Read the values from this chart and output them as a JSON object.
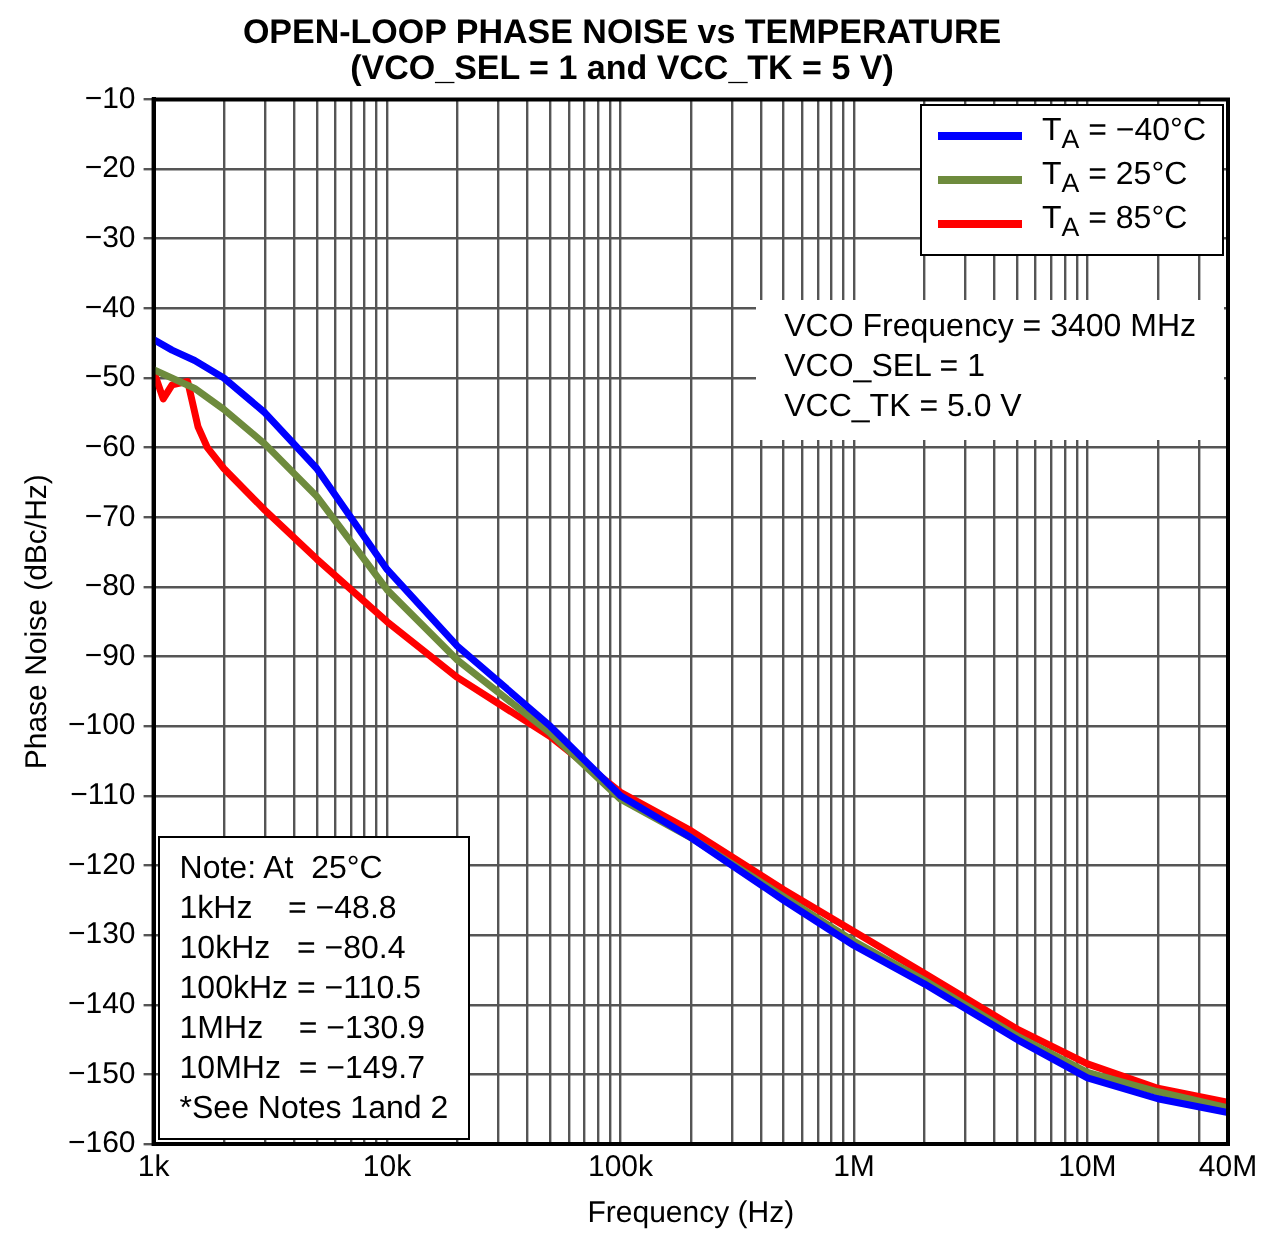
{
  "chart_data": {
    "type": "line",
    "title": "OPEN-LOOP PHASE NOISE vs TEMPERATURE",
    "subtitle": "(VCO_SEL = 1 and VCC_TK = 5 V)",
    "xlabel": "Frequency (Hz)",
    "ylabel": "Phase Noise (dBc/Hz)",
    "log": "x",
    "grid": true,
    "legend": "top right",
    "xlim": [
      1000,
      40000000
    ],
    "ylim": [
      -160,
      -10
    ],
    "xticks": [
      {
        "value": 1000,
        "label": "1k"
      },
      {
        "value": 2000,
        "label": null
      },
      {
        "value": 3000,
        "label": null
      },
      {
        "value": 4000,
        "label": null
      },
      {
        "value": 5000,
        "label": null
      },
      {
        "value": 6000,
        "label": null
      },
      {
        "value": 7000,
        "label": null
      },
      {
        "value": 8000,
        "label": null
      },
      {
        "value": 9000,
        "label": null
      },
      {
        "value": 10000,
        "label": "10k"
      },
      {
        "value": 20000,
        "label": null
      },
      {
        "value": 30000,
        "label": null
      },
      {
        "value": 40000,
        "label": null
      },
      {
        "value": 50000,
        "label": null
      },
      {
        "value": 60000,
        "label": null
      },
      {
        "value": 70000,
        "label": null
      },
      {
        "value": 80000,
        "label": null
      },
      {
        "value": 90000,
        "label": null
      },
      {
        "value": 100000,
        "label": "100k"
      },
      {
        "value": 200000,
        "label": null
      },
      {
        "value": 300000,
        "label": null
      },
      {
        "value": 400000,
        "label": null
      },
      {
        "value": 500000,
        "label": null
      },
      {
        "value": 600000,
        "label": null
      },
      {
        "value": 700000,
        "label": null
      },
      {
        "value": 800000,
        "label": null
      },
      {
        "value": 900000,
        "label": null
      },
      {
        "value": 1000000,
        "label": "1M"
      },
      {
        "value": 2000000,
        "label": null
      },
      {
        "value": 3000000,
        "label": null
      },
      {
        "value": 4000000,
        "label": null
      },
      {
        "value": 5000000,
        "label": null
      },
      {
        "value": 6000000,
        "label": null
      },
      {
        "value": 7000000,
        "label": null
      },
      {
        "value": 8000000,
        "label": null
      },
      {
        "value": 9000000,
        "label": null
      },
      {
        "value": 10000000,
        "label": "10M"
      },
      {
        "value": 20000000,
        "label": null
      },
      {
        "value": 30000000,
        "label": null
      },
      {
        "value": 40000000,
        "label": "40M"
      }
    ],
    "yticks": [
      -160,
      -150,
      -140,
      -130,
      -120,
      -110,
      -100,
      -90,
      -80,
      -70,
      -60,
      -50,
      -40,
      -30,
      -20,
      -10
    ],
    "annotations": [
      "VCO Frequency = 3400 MHz",
      "VCO_SEL = 1",
      "VCC_TK = 5.0 V",
      "Note: At  25°C",
      "1kHz    = −48.8",
      "10kHz   = −80.4",
      "100kHz = −110.5",
      "1MHz    = −130.9",
      "10MHz  = −149.7",
      "*See Notes 1and 2"
    ],
    "series": [
      {
        "name": "T$_{A}$ = −40°C",
        "color": "#0000ff",
        "x": [
          1000,
          1200,
          1500,
          2000,
          3000,
          5000,
          10000,
          20000,
          50000,
          100000,
          200000,
          500000,
          1000000,
          2000000,
          5000000,
          10000000,
          20000000,
          40000000
        ],
        "values": [
          -44.5,
          -46,
          -47.5,
          -50,
          -55,
          -63,
          -77.5,
          -88.5,
          -100,
          -110,
          -116,
          -125,
          -131.5,
          -137,
          -145,
          -150.5,
          -153.5,
          -155.5
        ]
      },
      {
        "name": "T$_{A}$ = 25°C",
        "color": "#6e8b3d",
        "x": [
          1000,
          1500,
          2000,
          3000,
          5000,
          10000,
          20000,
          50000,
          100000,
          200000,
          500000,
          1000000,
          2000000,
          5000000,
          10000000,
          20000000,
          40000000
        ],
        "values": [
          -48.8,
          -51.5,
          -54.5,
          -59.5,
          -67,
          -80.4,
          -90.5,
          -101,
          -110.5,
          -116,
          -124.5,
          -130.9,
          -136.5,
          -144.5,
          -149.7,
          -152.5,
          -154.8
        ]
      },
      {
        "name": "T$_{A}$ = 85°C",
        "color": "#ff0000",
        "x": [
          1000,
          1100,
          1200,
          1400,
          1550,
          1700,
          2000,
          3000,
          5000,
          10000,
          20000,
          50000,
          100000,
          200000,
          500000,
          1000000,
          2000000,
          5000000,
          10000000,
          20000000,
          40000000
        ],
        "values": [
          -49,
          -53,
          -51,
          -50.5,
          -57,
          -60,
          -63,
          -69,
          -76,
          -85,
          -93,
          -101.5,
          -109.5,
          -115,
          -123.5,
          -129.5,
          -135.5,
          -143.5,
          -148.5,
          -152,
          -154
        ]
      }
    ]
  }
}
